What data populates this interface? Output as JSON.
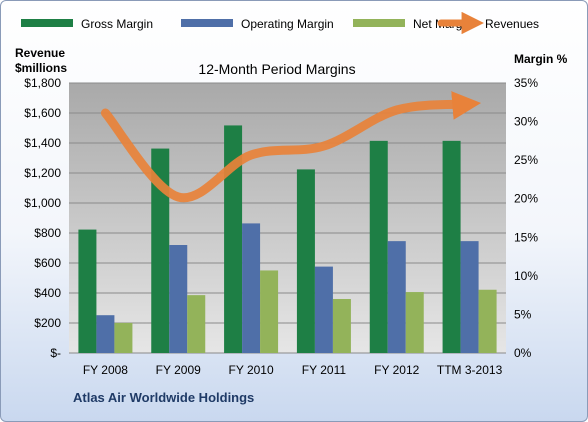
{
  "chart_data": {
    "type": "bar",
    "title": "12-Month Period Margins",
    "company": "Atlas Air Worldwide Holdings",
    "categories": [
      "FY 2008",
      "FY 2009",
      "FY 2010",
      "FY 2011",
      "FY 2012",
      "TTM 3-2013"
    ],
    "left_axis_label_line1": "Revenue",
    "left_axis_label_line2": "$millions",
    "right_axis_label": "Margin %",
    "left_ylim": [
      0,
      1800
    ],
    "right_ylim": [
      0,
      35
    ],
    "left_ticks": [
      "$-",
      "$200",
      "$400",
      "$600",
      "$800",
      "$1,000",
      "$1,200",
      "$1,400",
      "$1,600",
      "$1,800"
    ],
    "right_ticks": [
      "0%",
      "5%",
      "10%",
      "15%",
      "20%",
      "25%",
      "30%",
      "35%"
    ],
    "series": [
      {
        "name": "Gross Margin",
        "axis": "right",
        "kind": "bar",
        "color": "#1e7f45",
        "values": [
          16.0,
          26.5,
          29.5,
          23.8,
          27.5,
          27.5
        ]
      },
      {
        "name": "Operating Margin",
        "axis": "right",
        "kind": "bar",
        "color": "#4f6fa8",
        "values": [
          4.9,
          14.0,
          16.8,
          11.2,
          14.5,
          14.5
        ]
      },
      {
        "name": "Net Margin",
        "axis": "right",
        "kind": "bar",
        "color": "#93b35a",
        "values": [
          3.9,
          7.5,
          10.7,
          7.0,
          7.9,
          8.2
        ]
      },
      {
        "name": "Revenues",
        "axis": "left",
        "kind": "line",
        "color": "#e8823a",
        "values": [
          1600,
          1040,
          1320,
          1380,
          1620,
          1660
        ]
      }
    ],
    "legend_position": "top",
    "grid": true
  }
}
